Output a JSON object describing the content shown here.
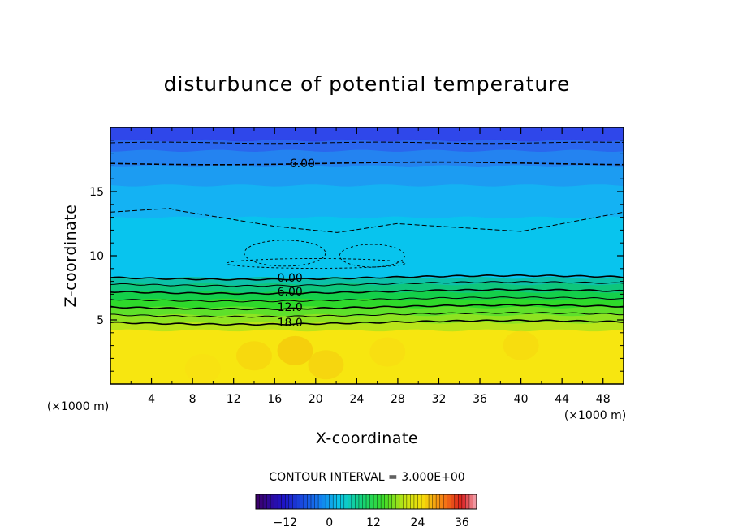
{
  "chart_data": {
    "type": "heatmap",
    "title": "disturbunce of potential temperature",
    "xlabel": "X-coordinate",
    "ylabel": "Z-coordinate",
    "x_unit": "(×1000 m)",
    "y_unit": "(×1000 m)",
    "xlim": [
      0,
      50
    ],
    "ylim": [
      0,
      20
    ],
    "x_ticks": [
      4,
      8,
      12,
      16,
      20,
      24,
      28,
      32,
      36,
      40,
      44,
      48
    ],
    "y_ticks": [
      5,
      10,
      15
    ],
    "contour_interval_text": "CONTOUR INTERVAL = 3.000E+00",
    "contour_labels": [
      {
        "text": "-6.00",
        "x": 18.5,
        "y": 17.2
      },
      {
        "text": "0.00",
        "x": 17.5,
        "y": 8.3
      },
      {
        "text": "6.00",
        "x": 17.5,
        "y": 7.2
      },
      {
        "text": "12.0",
        "x": 17.5,
        "y": 6.0
      },
      {
        "text": "18.0",
        "x": 17.5,
        "y": 4.8
      }
    ],
    "colorbar": {
      "min": -20,
      "max": 40,
      "tick_values": [
        -12,
        0,
        12,
        24,
        36
      ],
      "tick_labels": [
        "−12",
        "0",
        "12",
        "24",
        "36"
      ]
    },
    "field_layers": [
      {
        "z_from": 0.0,
        "z_to": 4.2,
        "value": 27,
        "color": "#f7e610"
      },
      {
        "z_from": 4.2,
        "z_to": 4.8,
        "value": 21,
        "color": "#b9e41a"
      },
      {
        "z_from": 4.8,
        "z_to": 5.4,
        "value": 18,
        "color": "#8ee322"
      },
      {
        "z_from": 5.4,
        "z_to": 6.0,
        "value": 15,
        "color": "#5ee02a"
      },
      {
        "z_from": 6.0,
        "z_to": 6.6,
        "value": 12,
        "color": "#2ed92a"
      },
      {
        "z_from": 6.6,
        "z_to": 7.2,
        "value": 9,
        "color": "#14cf4a"
      },
      {
        "z_from": 7.2,
        "z_to": 7.8,
        "value": 6,
        "color": "#0ec67c"
      },
      {
        "z_from": 7.8,
        "z_to": 8.3,
        "value": 3,
        "color": "#0cc0a8"
      },
      {
        "z_from": 8.3,
        "z_to": 13.0,
        "value": 0,
        "color": "#08c4ee"
      },
      {
        "z_from": 13.0,
        "z_to": 15.5,
        "value": -2,
        "color": "#14b2f3"
      },
      {
        "z_from": 15.5,
        "z_to": 17.0,
        "value": -5,
        "color": "#1c9cf2"
      },
      {
        "z_from": 17.0,
        "z_to": 18.2,
        "value": -8,
        "color": "#2483f0"
      },
      {
        "z_from": 18.2,
        "z_to": 19.0,
        "value": -11,
        "color": "#2a66ee"
      },
      {
        "z_from": 19.0,
        "z_to": 20.0,
        "value": -14,
        "color": "#2f47ea"
      }
    ]
  }
}
